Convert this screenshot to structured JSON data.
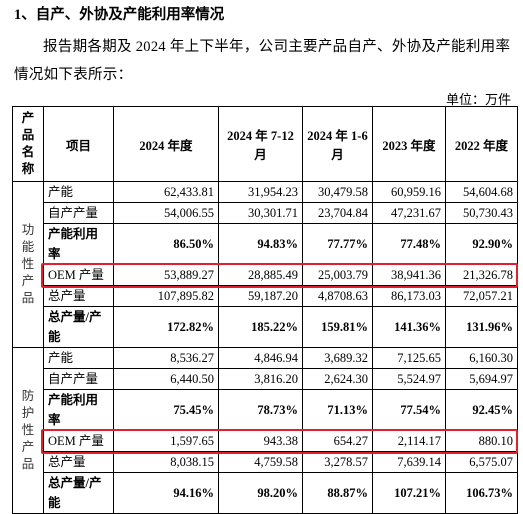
{
  "heading": "1、自产、外协及产能利用率情况",
  "paragraph": "报告期各期及 2024 年上下半年，公司主要产品自产、外协及产能利用率情况如下表所示：",
  "unit": "单位：万件",
  "table": {
    "header": [
      "产品名称",
      "项目",
      "2024 年度",
      "2024 年 7-12 月",
      "2024 年 1-6 月",
      "2023 年度",
      "2022 年度"
    ],
    "groups": [
      {
        "name": "功能性产品",
        "rows": [
          {
            "item": "产能",
            "values": [
              "62,433.81",
              "31,954.23",
              "30,479.58",
              "60,959.16",
              "54,604.68"
            ]
          },
          {
            "item": "自产产量",
            "values": [
              "54,006.55",
              "30,301.71",
              "23,704.84",
              "47,231.67",
              "50,730.43"
            ]
          },
          {
            "item": "产能利用率",
            "bold": true,
            "values": [
              "86.50%",
              "94.83%",
              "77.77%",
              "77.48%",
              "92.90%"
            ]
          },
          {
            "item": "OEM 产量",
            "highlighted": true,
            "values": [
              "53,889.27",
              "28,885.49",
              "25,003.79",
              "38,941.36",
              "21,326.78"
            ]
          },
          {
            "item": "总产量",
            "values": [
              "107,895.82",
              "59,187.20",
              "4,8708.63",
              "86,173.03",
              "72,057.21"
            ]
          },
          {
            "item": "总产量/产能",
            "bold": true,
            "values": [
              "172.82%",
              "185.22%",
              "159.81%",
              "141.36%",
              "131.96%"
            ]
          }
        ]
      },
      {
        "name": "防护性产品",
        "rows": [
          {
            "item": "产能",
            "values": [
              "8,536.27",
              "4,846.94",
              "3,689.32",
              "7,125.65",
              "6,160.30"
            ]
          },
          {
            "item": "自产产量",
            "values": [
              "6,440.50",
              "3,816.20",
              "2,624.30",
              "5,524.97",
              "5,694.97"
            ]
          },
          {
            "item": "产能利用率",
            "bold": true,
            "values": [
              "75.45%",
              "78.73%",
              "71.13%",
              "77.54%",
              "92.45%"
            ]
          },
          {
            "item": "OEM 产量",
            "highlighted": true,
            "values": [
              "1,597.65",
              "943.38",
              "654.27",
              "2,114.17",
              "880.10"
            ]
          },
          {
            "item": "总产量",
            "values": [
              "8,038.15",
              "4,759.58",
              "3,278.57",
              "7,639.14",
              "6,575.07"
            ]
          },
          {
            "item": "总产量/产能",
            "bold": true,
            "values": [
              "94.16%",
              "98.20%",
              "88.87%",
              "107.21%",
              "106.73%"
            ]
          }
        ]
      }
    ]
  }
}
